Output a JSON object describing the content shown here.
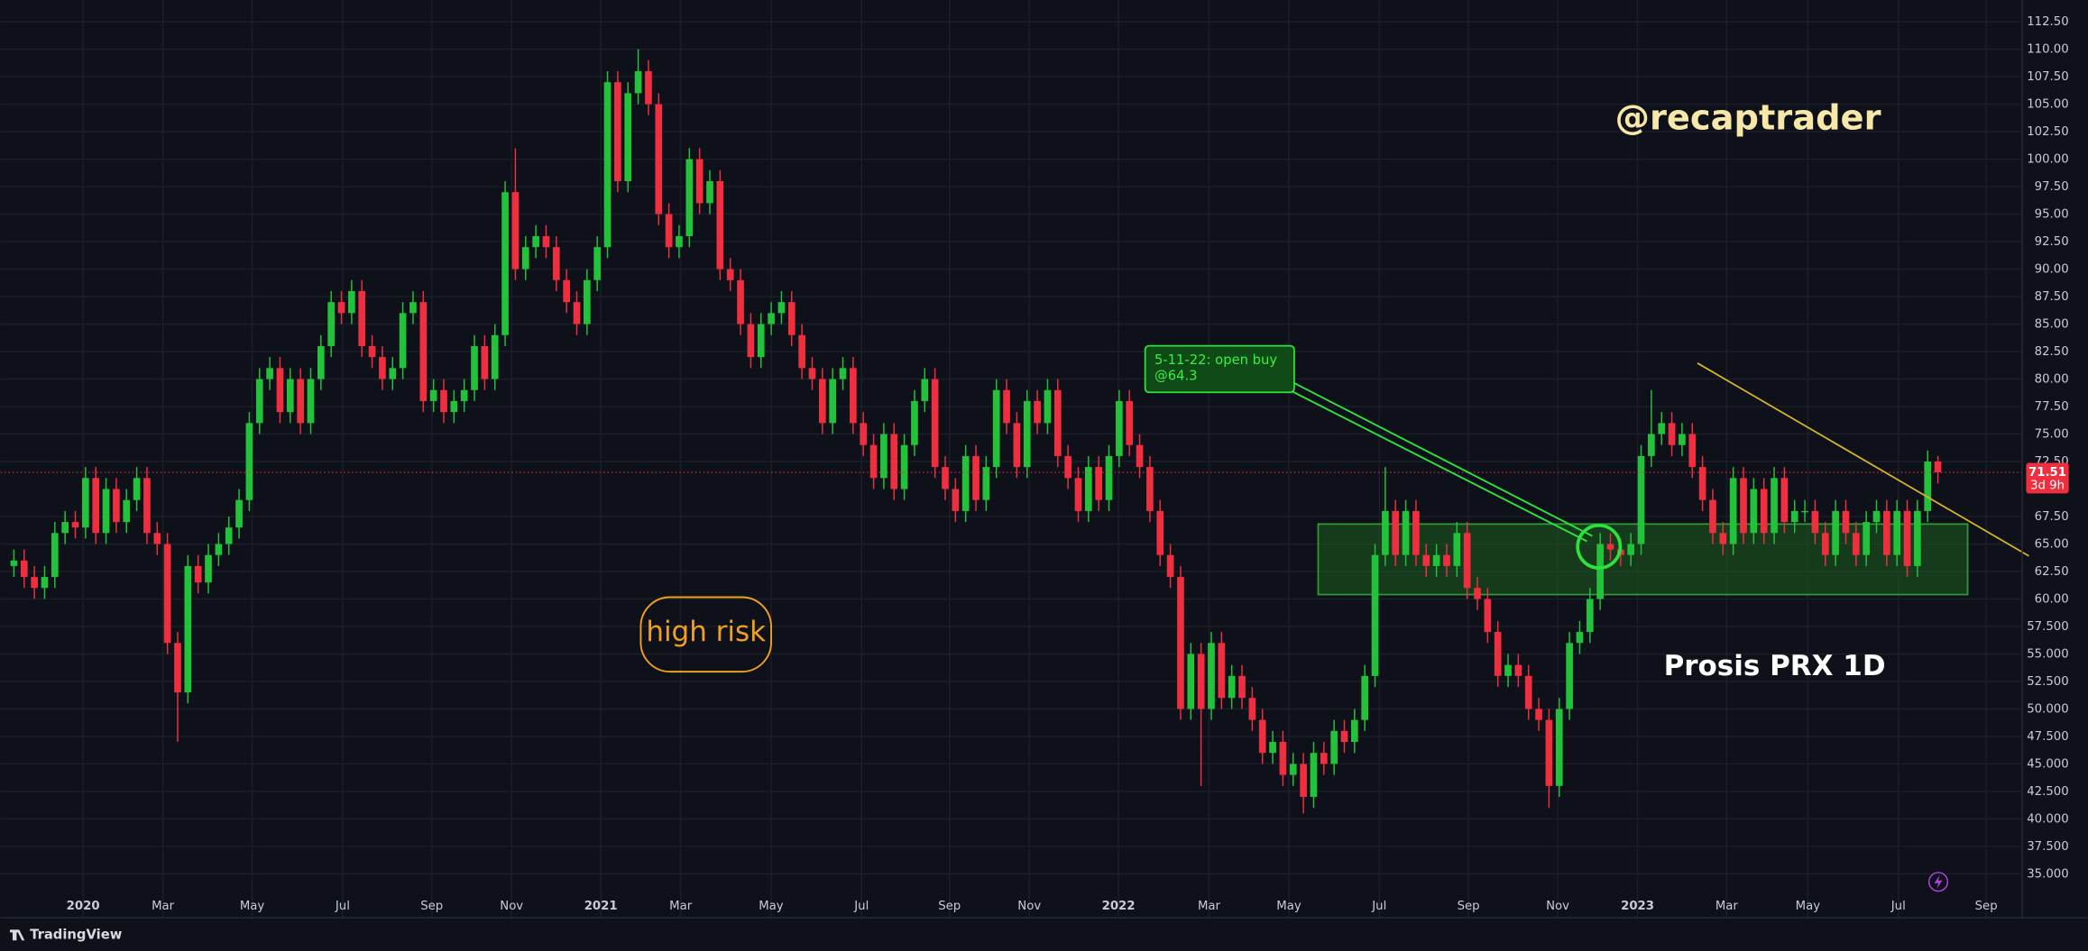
{
  "chart_data": {
    "type": "candlestick",
    "up_color": "#22c33a",
    "down_color": "#ef2f3f",
    "open": [
      63,
      63.5,
      62,
      61,
      62,
      66,
      67,
      66.5,
      71,
      66,
      70,
      67,
      69,
      71,
      66,
      65,
      56,
      51.5,
      63,
      61.5,
      64,
      65,
      66.5,
      69,
      76,
      80,
      81,
      77,
      80,
      76,
      80,
      83,
      87,
      86,
      88,
      83,
      82,
      80,
      81,
      86,
      87,
      78,
      79,
      77,
      78,
      79,
      83,
      80,
      84,
      97,
      90,
      92,
      93,
      92,
      89,
      87,
      85,
      89,
      92,
      107,
      98,
      106,
      108,
      105,
      95,
      92,
      93,
      100,
      96,
      98,
      90,
      89,
      85,
      82,
      85,
      86,
      87,
      84,
      81,
      80,
      76,
      80,
      81,
      76,
      74,
      71,
      75,
      70,
      74,
      78,
      80,
      72,
      70,
      68,
      73,
      69,
      72,
      79,
      76,
      72,
      78,
      76,
      79,
      73,
      71,
      68,
      72,
      69,
      73,
      78,
      74,
      72,
      68,
      64,
      62,
      50,
      55,
      50,
      56,
      51,
      53,
      51,
      49,
      46,
      47,
      44,
      45,
      42,
      46,
      45,
      48,
      47,
      49,
      53,
      64,
      68,
      64,
      68,
      64,
      63,
      64,
      63,
      66,
      61,
      60,
      57,
      53,
      54,
      53,
      50,
      49,
      43,
      50,
      56,
      57,
      60,
      65,
      64.5,
      64,
      65,
      73,
      75,
      76,
      74,
      75,
      72,
      69,
      66,
      65,
      71,
      66,
      70,
      66,
      71,
      67,
      68,
      68,
      66,
      64,
      68,
      66,
      64,
      67,
      68,
      64,
      68,
      63,
      68,
      72.5
    ],
    "high": [
      64.5,
      64.5,
      63,
      63,
      67,
      68,
      68,
      72,
      72,
      71,
      71,
      70,
      72,
      72,
      67,
      66,
      57,
      64,
      64,
      65,
      66,
      67.5,
      70,
      77,
      81,
      82,
      82,
      81,
      81,
      81,
      84,
      88,
      88,
      89,
      89,
      84,
      83,
      82,
      87,
      88,
      88,
      80,
      80,
      79,
      80,
      84,
      84,
      85,
      98,
      101,
      93,
      94,
      94,
      93,
      90,
      88,
      90,
      93,
      108,
      108,
      107,
      110,
      109,
      106,
      96,
      94,
      101,
      101,
      99,
      99,
      91,
      90,
      86,
      86,
      87,
      88,
      88,
      85,
      82,
      81,
      81,
      82,
      82,
      77,
      75,
      76,
      76,
      75,
      79,
      81,
      81,
      73,
      71,
      74,
      74,
      73,
      80,
      80,
      77,
      79,
      79,
      80,
      80,
      74,
      72,
      73,
      73,
      74,
      79,
      79,
      75,
      73,
      69,
      65,
      63,
      56,
      56,
      57,
      57,
      54,
      54,
      52,
      50,
      48,
      48,
      46,
      46,
      47,
      47,
      49,
      49,
      50,
      54,
      65,
      72,
      69,
      69,
      69,
      65,
      65,
      65,
      67,
      67,
      62,
      61,
      58,
      55,
      55,
      54,
      51,
      50,
      51,
      57,
      58,
      61,
      66,
      66,
      65.5,
      66,
      74,
      79,
      77,
      77,
      76,
      76,
      73,
      70,
      67,
      72,
      72,
      71,
      71,
      72,
      72,
      69,
      69,
      69,
      67,
      69,
      69,
      67,
      68,
      69,
      69,
      69,
      69,
      69,
      73.5,
      73
    ],
    "low": [
      62,
      61,
      60,
      60,
      61,
      65,
      65.5,
      65.5,
      65,
      65,
      66,
      66,
      68,
      65,
      64,
      55,
      47,
      50.5,
      60.5,
      60.5,
      63,
      64,
      65.5,
      68,
      75,
      79,
      76,
      76,
      75,
      75,
      79,
      82,
      85,
      85,
      82,
      81,
      79,
      79,
      80,
      85,
      77,
      77,
      76,
      76,
      77,
      78,
      79,
      79,
      83,
      89,
      89,
      91,
      91,
      88,
      86,
      84,
      84,
      88,
      91,
      97,
      97,
      105,
      104,
      94,
      91,
      91,
      92,
      95,
      95,
      89,
      88,
      84,
      81,
      81,
      84,
      85,
      83,
      80,
      79,
      75,
      75,
      79,
      75,
      73,
      70,
      70,
      69,
      69,
      73,
      77,
      71,
      69,
      67,
      67,
      68,
      68,
      71,
      75,
      71,
      71,
      75,
      75,
      72,
      70,
      67,
      67,
      68,
      68,
      72,
      73,
      71,
      67,
      63,
      61,
      49,
      49,
      43,
      49,
      50,
      50,
      50,
      48,
      45,
      45,
      43,
      43,
      40.5,
      41,
      44,
      44,
      46,
      46,
      48,
      52,
      63,
      63,
      63,
      63,
      62,
      62,
      62,
      62,
      60,
      59,
      56,
      52,
      52,
      52,
      49,
      48,
      41,
      42,
      49,
      55,
      56,
      59,
      63.5,
      63,
      63,
      64,
      72,
      74,
      73,
      73,
      71,
      68,
      65,
      64,
      64,
      65,
      65,
      65,
      65,
      66,
      66,
      67,
      65,
      63,
      63,
      65,
      63,
      63,
      66,
      63,
      63,
      62,
      62,
      67,
      70.5
    ],
    "close": [
      63.5,
      62,
      61,
      62,
      66,
      67,
      66.5,
      71,
      66,
      70,
      67,
      69,
      71,
      66,
      65,
      56,
      51.5,
      63,
      61.5,
      64,
      65,
      66.5,
      69,
      76,
      80,
      81,
      77,
      80,
      76,
      80,
      83,
      87,
      86,
      88,
      83,
      82,
      80,
      81,
      86,
      87,
      78,
      79,
      77,
      78,
      79,
      83,
      80,
      84,
      97,
      90,
      92,
      93,
      92,
      89,
      87,
      85,
      89,
      92,
      107,
      98,
      106,
      108,
      105,
      95,
      92,
      93,
      100,
      96,
      98,
      90,
      89,
      85,
      82,
      85,
      86,
      87,
      84,
      81,
      80,
      76,
      80,
      81,
      76,
      74,
      71,
      75,
      70,
      74,
      78,
      80,
      72,
      70,
      68,
      73,
      69,
      72,
      79,
      76,
      72,
      78,
      76,
      79,
      73,
      71,
      68,
      72,
      69,
      73,
      78,
      74,
      72,
      68,
      64,
      62,
      50,
      55,
      50,
      56,
      51,
      53,
      51,
      49,
      46,
      47,
      44,
      45,
      42,
      46,
      45,
      48,
      47,
      49,
      53,
      64,
      68,
      64,
      68,
      64,
      63,
      64,
      63,
      66,
      61,
      60,
      57,
      53,
      54,
      53,
      50,
      49,
      43,
      50,
      56,
      57,
      60,
      65,
      64.5,
      64,
      65,
      73,
      75,
      76,
      74,
      75,
      72,
      69,
      66,
      65,
      71,
      66,
      70,
      66,
      71,
      67,
      68,
      68,
      66,
      64,
      68,
      66,
      64,
      67,
      68,
      64,
      68,
      63,
      68,
      72.5,
      71.51
    ],
    "ylim": [
      32.5,
      115
    ],
    "yticks": [
      {
        "value": 112.5,
        "label": "112.50"
      },
      {
        "value": 110,
        "label": "110.00"
      },
      {
        "value": 107.5,
        "label": "107.50"
      },
      {
        "value": 105,
        "label": "105.00"
      },
      {
        "value": 102.5,
        "label": "102.50"
      },
      {
        "value": 100,
        "label": "100.00"
      },
      {
        "value": 97.5,
        "label": "97.50"
      },
      {
        "value": 95,
        "label": "95.00"
      },
      {
        "value": 92.5,
        "label": "92.50"
      },
      {
        "value": 90,
        "label": "90.00"
      },
      {
        "value": 87.5,
        "label": "87.50"
      },
      {
        "value": 85,
        "label": "85.00"
      },
      {
        "value": 82.5,
        "label": "82.50"
      },
      {
        "value": 80,
        "label": "80.00"
      },
      {
        "value": 77.5,
        "label": "77.50"
      },
      {
        "value": 75,
        "label": "75.00"
      },
      {
        "value": 72.5,
        "label": "72.50"
      },
      {
        "value": 67.5,
        "label": "67.50"
      },
      {
        "value": 65,
        "label": "65.00"
      },
      {
        "value": 62.5,
        "label": "62.50"
      },
      {
        "value": 60,
        "label": "60.00"
      },
      {
        "value": 57.5,
        "label": "57.500"
      },
      {
        "value": 55,
        "label": "55.000"
      },
      {
        "value": 52.5,
        "label": "52.500"
      },
      {
        "value": 50,
        "label": "50.000"
      },
      {
        "value": 47.5,
        "label": "47.500"
      },
      {
        "value": 45,
        "label": "45.000"
      },
      {
        "value": 42.5,
        "label": "42.500"
      },
      {
        "value": 40,
        "label": "40.000"
      },
      {
        "value": 37.5,
        "label": "37.500"
      },
      {
        "value": 35,
        "label": "35.000"
      }
    ],
    "xlim": [
      -0.5,
      196
    ],
    "xticks": [
      {
        "value": 6.76,
        "label": "2020"
      },
      {
        "value": 14.56,
        "label": "Mar"
      },
      {
        "value": 23.28,
        "label": "May"
      },
      {
        "value": 32.12,
        "label": "Jul"
      },
      {
        "value": 40.83,
        "label": "Sep"
      },
      {
        "value": 48.63,
        "label": "Nov"
      },
      {
        "value": 57.35,
        "label": "2021"
      },
      {
        "value": 65.15,
        "label": "Mar"
      },
      {
        "value": 73.99,
        "label": "May"
      },
      {
        "value": 82.83,
        "label": "Jul"
      },
      {
        "value": 91.42,
        "label": "Sep"
      },
      {
        "value": 99.22,
        "label": "Nov"
      },
      {
        "value": 107.93,
        "label": "2022"
      },
      {
        "value": 116.78,
        "label": "Mar"
      },
      {
        "value": 124.58,
        "label": "May"
      },
      {
        "value": 133.42,
        "label": "Jul"
      },
      {
        "value": 142.13,
        "label": "Sep"
      },
      {
        "value": 150.85,
        "label": "Nov"
      },
      {
        "value": 158.65,
        "label": "2023"
      },
      {
        "value": 167.36,
        "label": "Mar"
      },
      {
        "value": 175.29,
        "label": "May"
      },
      {
        "value": 184.14,
        "label": "Jul"
      },
      {
        "value": 192.72,
        "label": "Sep"
      }
    ],
    "grid": true,
    "watermark": "@recaptrader",
    "symbol_label": "Prosis PRX 1D",
    "risk_note": "high risk",
    "callout": [
      "5-11-22: open buy",
      "@64.3"
    ],
    "countdown": "3d 9h",
    "brand": "TradingView"
  }
}
